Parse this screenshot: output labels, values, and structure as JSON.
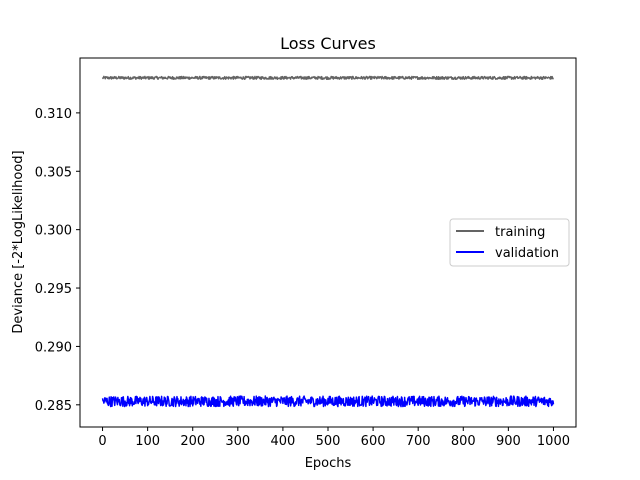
{
  "chart_data": {
    "type": "line",
    "title": "Loss Curves",
    "xlabel": "Epochs",
    "ylabel": "Deviance [-2*LogLikelihood]",
    "xlim": [
      -50,
      1050
    ],
    "ylim": [
      0.2831,
      0.3147
    ],
    "xticks": [
      0,
      100,
      200,
      300,
      400,
      500,
      600,
      700,
      800,
      900,
      1000
    ],
    "yticks": [
      0.285,
      0.29,
      0.295,
      0.3,
      0.305,
      0.31
    ],
    "ytick_labels": [
      "0.285",
      "0.290",
      "0.295",
      "0.300",
      "0.305",
      "0.310"
    ],
    "grid": false,
    "legend_position": "center-right",
    "series": [
      {
        "name": "training",
        "color": "#646464",
        "x_start": 0,
        "x_end": 1000,
        "mean": 0.313,
        "noise_amplitude": 0.00012
      },
      {
        "name": "validation",
        "color": "#0000ff",
        "x_start": 0,
        "x_end": 1000,
        "mean": 0.2853,
        "noise_amplitude": 0.00045
      }
    ]
  }
}
